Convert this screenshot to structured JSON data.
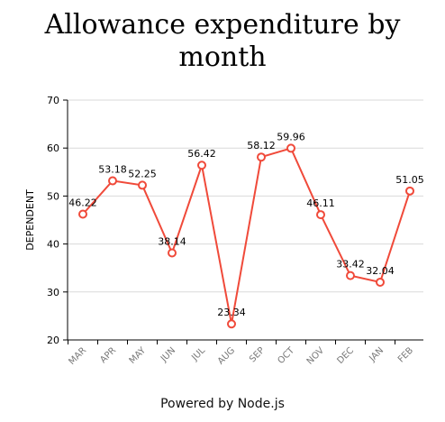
{
  "chart_data": {
    "type": "line",
    "title_line1": "Allowance expenditure by",
    "title_line2": "month",
    "ylabel": "DEPENDENT",
    "xlabel": "",
    "categories": [
      "MAR",
      "APR",
      "MAY",
      "JUN",
      "JUL",
      "AUG",
      "SEP",
      "OCT",
      "NOV",
      "DEC",
      "JAN",
      "FEB"
    ],
    "series": [
      {
        "values": [
          46.22,
          53.18,
          52.25,
          38.14,
          56.42,
          23.34,
          58.12,
          59.96,
          46.11,
          33.42,
          32.04,
          51.05
        ]
      }
    ],
    "ylim": [
      20,
      70
    ],
    "yticks": [
      20,
      30,
      40,
      50,
      60,
      70
    ],
    "grid": true,
    "legend": "none",
    "color": "#f04a3a"
  },
  "footer_text": "Powered by Node.js"
}
